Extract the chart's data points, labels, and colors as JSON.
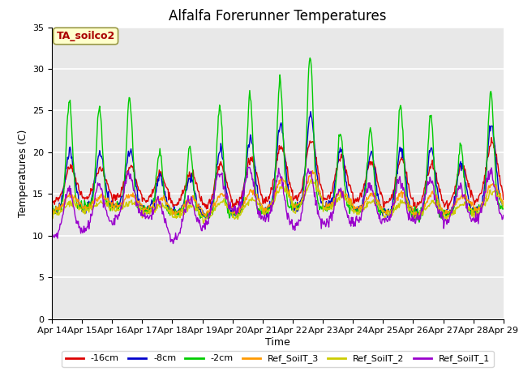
{
  "title": "Alfalfa Forerunner Temperatures",
  "ylabel": "Temperatures (C)",
  "xlabel": "Time",
  "ylim": [
    0,
    35
  ],
  "yticks": [
    0,
    5,
    10,
    15,
    20,
    25,
    30,
    35
  ],
  "xtick_labels": [
    "Apr 14",
    "Apr 15",
    "Apr 16",
    "Apr 17",
    "Apr 18",
    "Apr 19",
    "Apr 20",
    "Apr 21",
    "Apr 22",
    "Apr 23",
    "Apr 24",
    "Apr 25",
    "Apr 26",
    "Apr 27",
    "Apr 28",
    "Apr 29"
  ],
  "legend_labels": [
    "-16cm",
    "-8cm",
    "-2cm",
    "Ref_SoilT_3",
    "Ref_SoilT_2",
    "Ref_SoilT_1"
  ],
  "line_colors": [
    "#dd0000",
    "#0000cc",
    "#00cc00",
    "#ff9900",
    "#cccc00",
    "#9900cc"
  ],
  "annotation_text": "TA_soilco2",
  "annotation_color": "#aa0000",
  "annotation_bg": "#ffffcc",
  "plot_bg": "#e8e8e8",
  "n_days": 15,
  "title_fontsize": 12,
  "axis_fontsize": 9,
  "tick_fontsize": 8
}
